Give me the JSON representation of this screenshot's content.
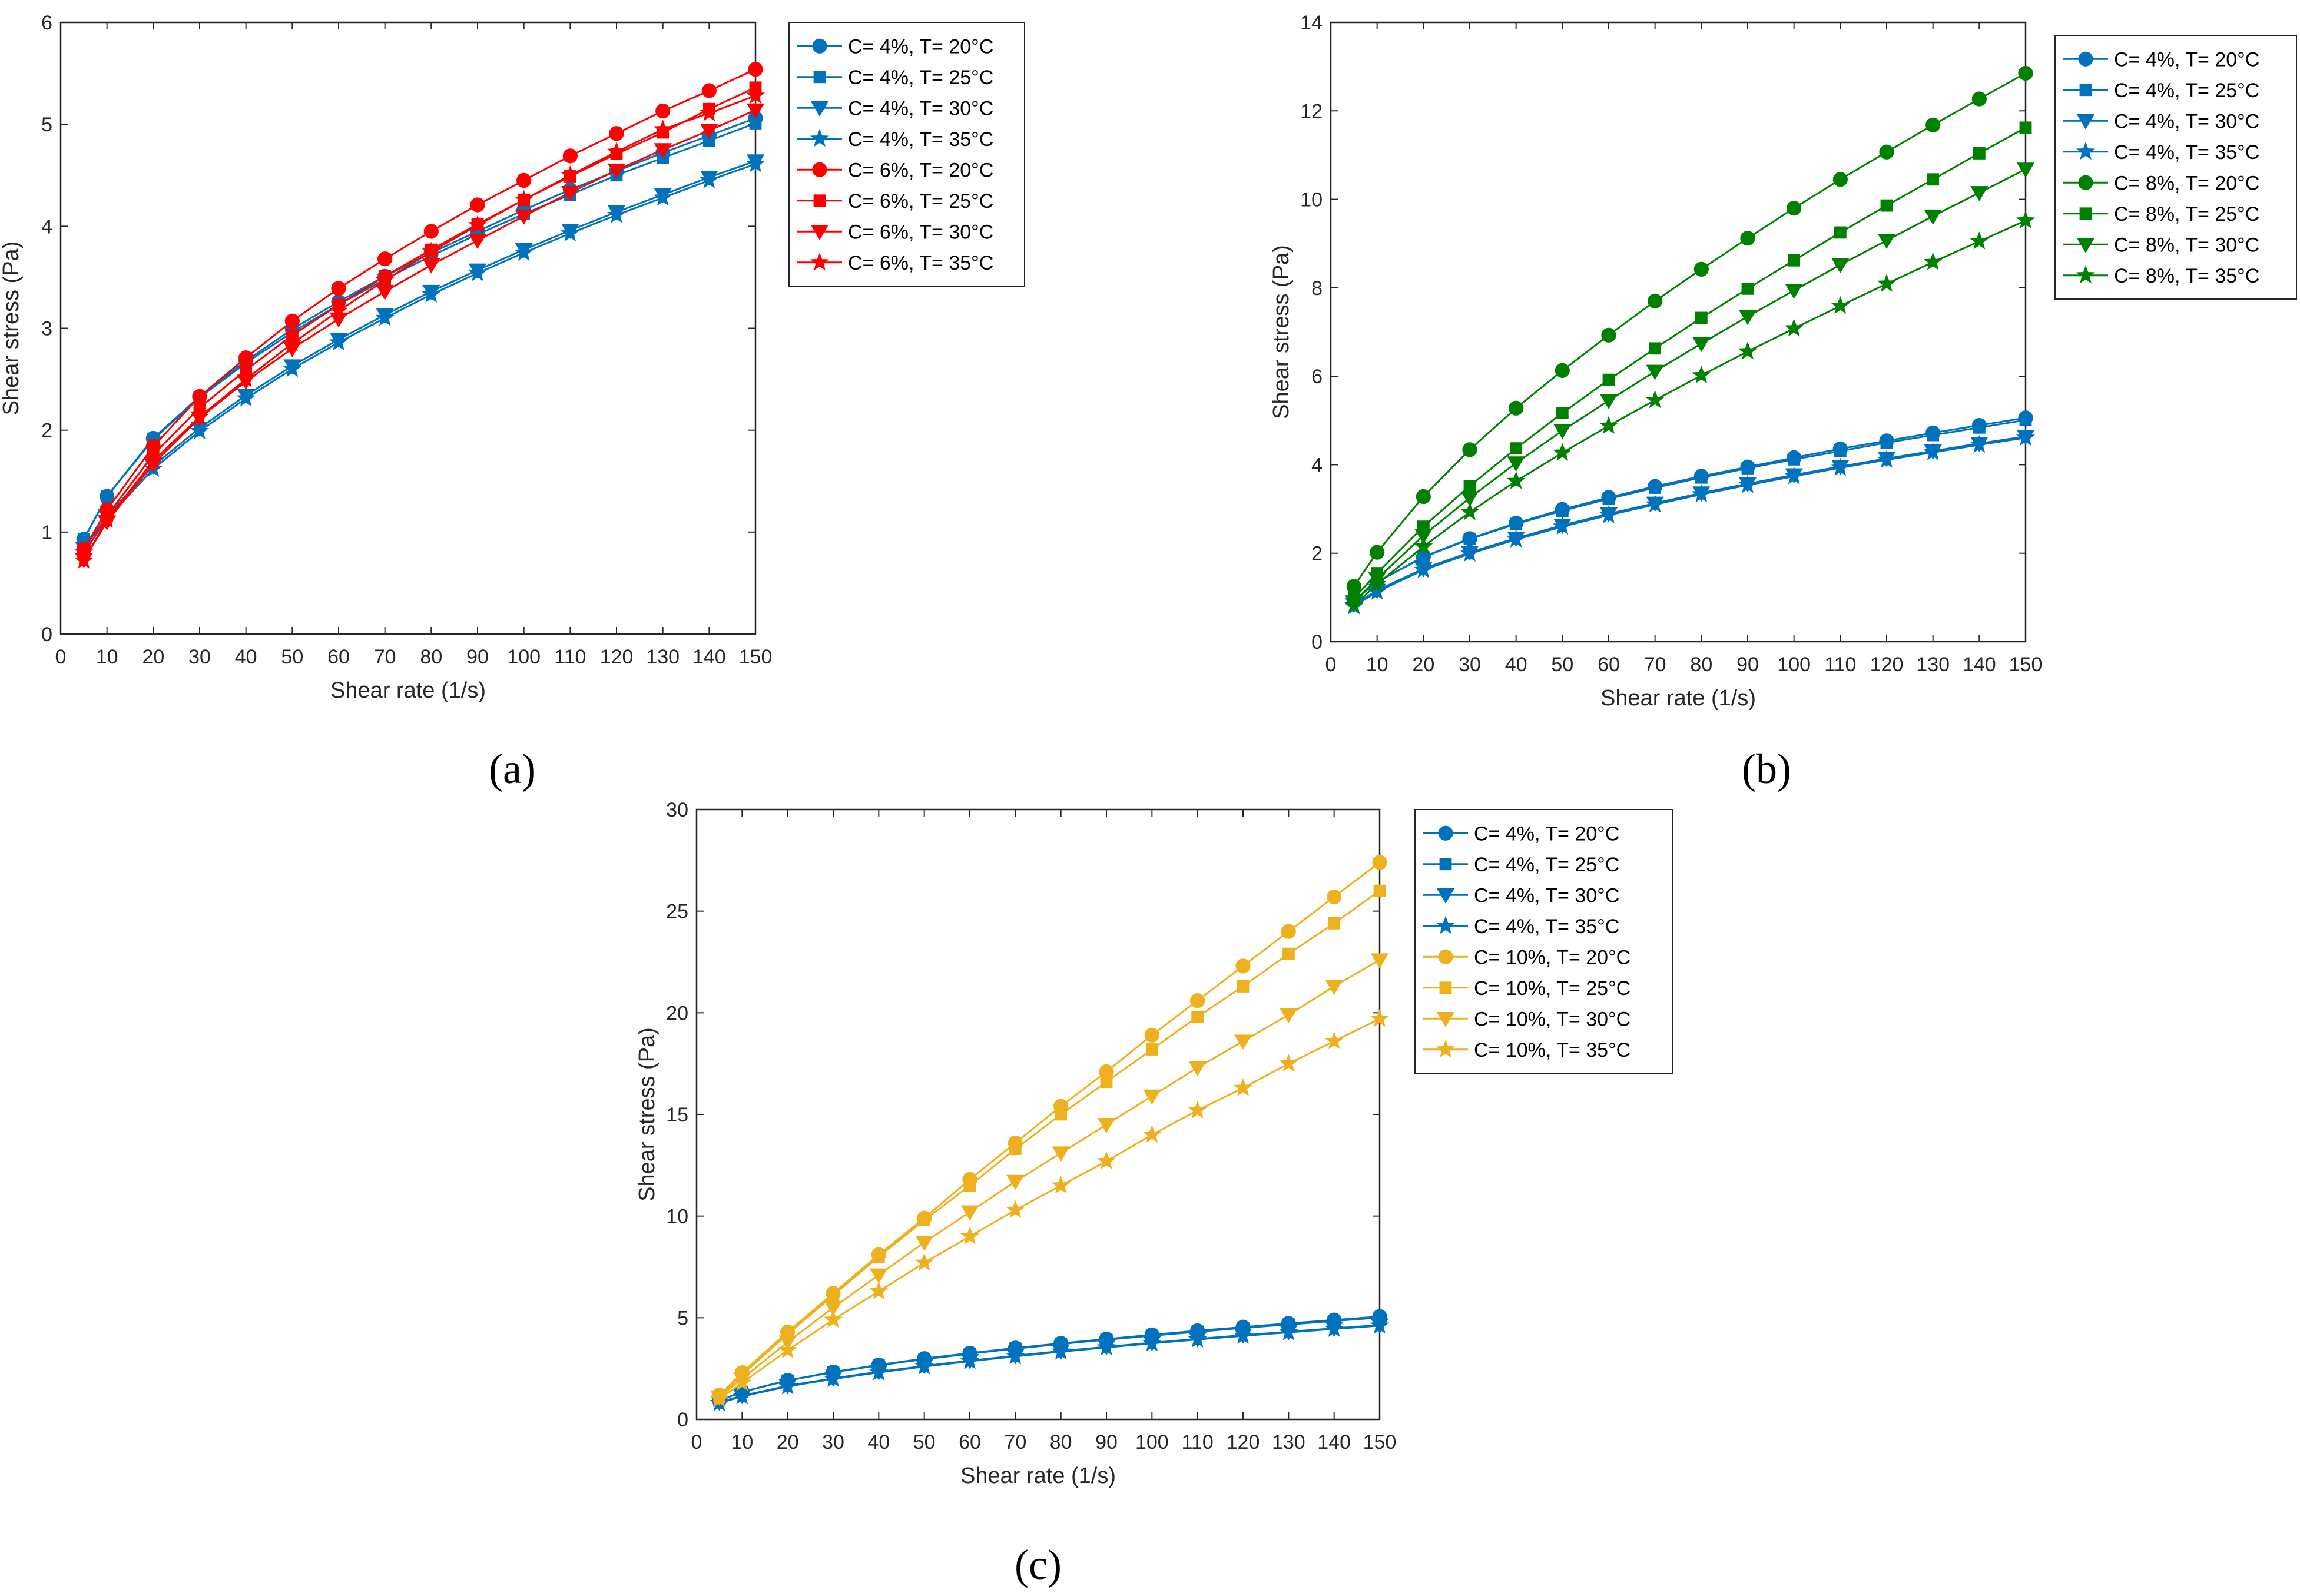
{
  "colors": {
    "blue": "#0072BD",
    "red": "#FF0000",
    "green": "#008000",
    "yellow": "#EDB120",
    "axis": "#262626"
  },
  "chart_data": [
    {
      "panel_label": "(a)",
      "type": "line",
      "xlabel": "Shear rate (1/s)",
      "ylabel": "Shear stress (Pa)",
      "xlim": [
        0,
        150
      ],
      "ylim": [
        0,
        6
      ],
      "xticks": [
        0,
        10,
        20,
        30,
        40,
        50,
        60,
        70,
        80,
        90,
        100,
        110,
        120,
        130,
        140,
        150
      ],
      "yticks": [
        0,
        1,
        2,
        3,
        4,
        5,
        6
      ],
      "x": [
        5,
        10,
        20,
        30,
        40,
        50,
        60,
        70,
        80,
        90,
        100,
        110,
        120,
        130,
        140,
        150
      ],
      "legend_position": "outside-right-top",
      "series": [
        {
          "name": "C= 4%, T= 20°C",
          "color": "#0072BD",
          "marker": "circle",
          "values": [
            0.93,
            1.35,
            1.92,
            2.33,
            2.68,
            2.99,
            3.26,
            3.51,
            3.74,
            3.95,
            4.16,
            4.36,
            4.54,
            4.72,
            4.89,
            5.06
          ]
        },
        {
          "name": "C= 4%, T= 25°C",
          "color": "#0072BD",
          "marker": "square",
          "values": [
            0.93,
            1.35,
            1.91,
            2.32,
            2.66,
            2.96,
            3.23,
            3.48,
            3.71,
            3.92,
            4.12,
            4.31,
            4.5,
            4.67,
            4.84,
            5.01
          ]
        },
        {
          "name": "C= 4%, T= 30°C",
          "color": "#0072BD",
          "marker": "triangle-down",
          "values": [
            0.84,
            1.16,
            1.65,
            2.02,
            2.34,
            2.63,
            2.89,
            3.13,
            3.36,
            3.57,
            3.77,
            3.96,
            4.14,
            4.31,
            4.48,
            4.64
          ]
        },
        {
          "name": "C= 4%, T= 35°C",
          "color": "#0072BD",
          "marker": "star",
          "values": [
            0.8,
            1.13,
            1.62,
            1.99,
            2.31,
            2.6,
            2.86,
            3.1,
            3.33,
            3.54,
            3.74,
            3.93,
            4.11,
            4.28,
            4.45,
            4.61
          ]
        },
        {
          "name": "C= 6%, T= 20°C",
          "color": "#FF0000",
          "marker": "circle",
          "values": [
            0.83,
            1.22,
            1.84,
            2.33,
            2.71,
            3.07,
            3.39,
            3.68,
            3.95,
            4.21,
            4.45,
            4.69,
            4.91,
            5.13,
            5.33,
            5.54
          ]
        },
        {
          "name": "C= 6%, T= 25°C",
          "color": "#FF0000",
          "marker": "square",
          "values": [
            0.78,
            1.16,
            1.76,
            2.22,
            2.59,
            2.93,
            3.23,
            3.51,
            3.77,
            4.02,
            4.26,
            4.49,
            4.71,
            4.92,
            5.15,
            5.36
          ]
        },
        {
          "name": "C= 6%, T= 30°C",
          "color": "#FF0000",
          "marker": "triangle-down",
          "values": [
            0.73,
            1.1,
            1.67,
            2.12,
            2.48,
            2.8,
            3.09,
            3.36,
            3.62,
            3.86,
            4.1,
            4.33,
            4.55,
            4.75,
            4.94,
            5.14
          ]
        },
        {
          "name": "C= 6%, T= 35°C",
          "color": "#FF0000",
          "marker": "star",
          "values": [
            0.72,
            1.12,
            1.7,
            2.13,
            2.5,
            2.85,
            3.17,
            3.47,
            3.75,
            4.01,
            4.26,
            4.5,
            4.73,
            4.95,
            5.11,
            5.28
          ]
        }
      ]
    },
    {
      "panel_label": "(b)",
      "type": "line",
      "xlabel": "Shear rate (1/s)",
      "ylabel": "Shear stress (Pa)",
      "xlim": [
        0,
        150
      ],
      "ylim": [
        0,
        14
      ],
      "xticks": [
        0,
        10,
        20,
        30,
        40,
        50,
        60,
        70,
        80,
        90,
        100,
        110,
        120,
        130,
        140,
        150
      ],
      "yticks": [
        0,
        2,
        4,
        6,
        8,
        10,
        12,
        14
      ],
      "x": [
        5,
        10,
        20,
        30,
        40,
        50,
        60,
        70,
        80,
        90,
        100,
        110,
        120,
        130,
        140,
        150
      ],
      "legend_position": "outside-right-top",
      "series": [
        {
          "name": "C= 4%, T= 20°C",
          "color": "#0072BD",
          "marker": "circle",
          "values": [
            0.93,
            1.35,
            1.92,
            2.33,
            2.68,
            2.99,
            3.26,
            3.51,
            3.74,
            3.95,
            4.16,
            4.36,
            4.54,
            4.72,
            4.89,
            5.06
          ]
        },
        {
          "name": "C= 4%, T= 25°C",
          "color": "#0072BD",
          "marker": "square",
          "values": [
            0.93,
            1.35,
            1.91,
            2.32,
            2.66,
            2.96,
            3.23,
            3.48,
            3.71,
            3.92,
            4.12,
            4.31,
            4.5,
            4.67,
            4.84,
            5.01
          ]
        },
        {
          "name": "C= 4%, T= 30°C",
          "color": "#0072BD",
          "marker": "triangle-down",
          "values": [
            0.84,
            1.16,
            1.65,
            2.02,
            2.34,
            2.63,
            2.89,
            3.13,
            3.36,
            3.57,
            3.77,
            3.96,
            4.14,
            4.31,
            4.48,
            4.64
          ]
        },
        {
          "name": "C= 4%, T= 35°C",
          "color": "#0072BD",
          "marker": "star",
          "values": [
            0.8,
            1.13,
            1.62,
            1.99,
            2.31,
            2.6,
            2.86,
            3.1,
            3.33,
            3.54,
            3.74,
            3.93,
            4.11,
            4.28,
            4.45,
            4.61
          ]
        },
        {
          "name": "C= 8%, T= 20°C",
          "color": "#008000",
          "marker": "circle",
          "values": [
            1.25,
            2.02,
            3.28,
            4.34,
            5.28,
            6.13,
            6.93,
            7.7,
            8.42,
            9.12,
            9.8,
            10.45,
            11.07,
            11.68,
            12.27,
            12.85
          ]
        },
        {
          "name": "C= 8%, T= 25°C",
          "color": "#008000",
          "marker": "square",
          "values": [
            0.98,
            1.55,
            2.6,
            3.52,
            4.37,
            5.17,
            5.92,
            6.63,
            7.32,
            7.98,
            8.62,
            9.25,
            9.86,
            10.45,
            11.04,
            11.62
          ]
        },
        {
          "name": "C= 8%, T= 30°C",
          "color": "#008000",
          "marker": "triangle-down",
          "values": [
            0.9,
            1.42,
            2.4,
            3.25,
            4.04,
            4.77,
            5.45,
            6.11,
            6.74,
            7.35,
            7.94,
            8.52,
            9.07,
            9.62,
            10.15,
            10.68
          ]
        },
        {
          "name": "C= 8%, T= 35°C",
          "color": "#008000",
          "marker": "star",
          "values": [
            0.82,
            1.3,
            2.15,
            2.93,
            3.63,
            4.27,
            4.88,
            5.46,
            6.02,
            6.56,
            7.08,
            7.59,
            8.09,
            8.58,
            9.05,
            9.52
          ]
        }
      ]
    },
    {
      "panel_label": "(c)",
      "type": "line",
      "xlabel": "Shear rate (1/s)",
      "ylabel": "Shear stress (Pa)",
      "xlim": [
        0,
        150
      ],
      "ylim": [
        0,
        30
      ],
      "xticks": [
        0,
        10,
        20,
        30,
        40,
        50,
        60,
        70,
        80,
        90,
        100,
        110,
        120,
        130,
        140,
        150
      ],
      "yticks": [
        0,
        5,
        10,
        15,
        20,
        25,
        30
      ],
      "x": [
        5,
        10,
        20,
        30,
        40,
        50,
        60,
        70,
        80,
        90,
        100,
        110,
        120,
        130,
        140,
        150
      ],
      "legend_position": "outside-right-top",
      "series": [
        {
          "name": "C= 4%, T= 20°C",
          "color": "#0072BD",
          "marker": "circle",
          "values": [
            0.93,
            1.35,
            1.92,
            2.33,
            2.68,
            2.99,
            3.26,
            3.51,
            3.74,
            3.95,
            4.16,
            4.36,
            4.54,
            4.72,
            4.89,
            5.06
          ]
        },
        {
          "name": "C= 4%, T= 25°C",
          "color": "#0072BD",
          "marker": "square",
          "values": [
            0.93,
            1.35,
            1.91,
            2.32,
            2.66,
            2.96,
            3.23,
            3.48,
            3.71,
            3.92,
            4.12,
            4.31,
            4.5,
            4.67,
            4.84,
            5.01
          ]
        },
        {
          "name": "C= 4%, T= 30°C",
          "color": "#0072BD",
          "marker": "triangle-down",
          "values": [
            0.84,
            1.16,
            1.65,
            2.02,
            2.34,
            2.63,
            2.89,
            3.13,
            3.36,
            3.57,
            3.77,
            3.96,
            4.14,
            4.31,
            4.48,
            4.64
          ]
        },
        {
          "name": "C= 4%, T= 35°C",
          "color": "#0072BD",
          "marker": "star",
          "values": [
            0.8,
            1.13,
            1.62,
            1.99,
            2.31,
            2.6,
            2.86,
            3.1,
            3.33,
            3.54,
            3.74,
            3.93,
            4.11,
            4.28,
            4.45,
            4.61
          ]
        },
        {
          "name": "C= 10%, T= 20°C",
          "color": "#EDB120",
          "marker": "circle",
          "values": [
            1.2,
            2.3,
            4.3,
            6.2,
            8.1,
            9.9,
            11.8,
            13.6,
            15.4,
            17.1,
            18.9,
            20.6,
            22.3,
            24.0,
            25.7,
            27.4
          ]
        },
        {
          "name": "C= 10%, T= 25°C",
          "color": "#EDB120",
          "marker": "square",
          "values": [
            1.1,
            2.2,
            4.2,
            6.1,
            8.0,
            9.8,
            11.5,
            13.3,
            15.0,
            16.6,
            18.2,
            19.8,
            21.3,
            22.9,
            24.4,
            26.0
          ]
        },
        {
          "name": "C= 10%, T= 30°C",
          "color": "#EDB120",
          "marker": "triangle-down",
          "values": [
            1.1,
            2.0,
            3.8,
            5.5,
            7.1,
            8.7,
            10.2,
            11.7,
            13.1,
            14.5,
            15.9,
            17.3,
            18.6,
            19.9,
            21.3,
            22.6
          ]
        },
        {
          "name": "C= 10%, T= 35°C",
          "color": "#EDB120",
          "marker": "star",
          "values": [
            1.0,
            1.8,
            3.4,
            4.9,
            6.3,
            7.7,
            9.0,
            10.3,
            11.5,
            12.7,
            14.0,
            15.2,
            16.3,
            17.5,
            18.6,
            19.7
          ]
        }
      ]
    }
  ]
}
